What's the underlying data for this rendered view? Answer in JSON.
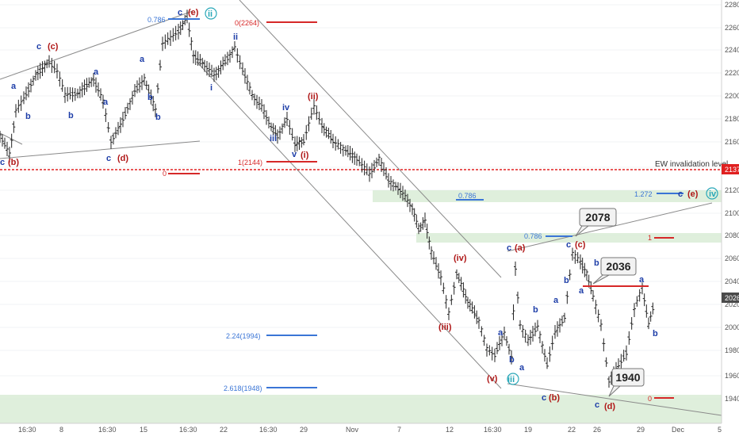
{
  "chart_data": {
    "type": "ohlc",
    "y_axis": {
      "ticks": [
        1940,
        1960,
        1980,
        2000,
        2020,
        2040,
        2060,
        2080,
        2100,
        2120,
        2140,
        2160,
        2180,
        2200,
        2220,
        2240,
        2260,
        2280
      ],
      "current_price": "2026",
      "invalidation_price": "2137"
    },
    "x_axis": {
      "ticks": [
        "16:30",
        "8",
        "16:30",
        "15",
        "16:30",
        "22",
        "16:30",
        "29",
        "Nov",
        "7",
        "12",
        "16:30",
        "19",
        "22",
        "26",
        "29",
        "Dec",
        "5"
      ]
    },
    "annotations": {
      "invalidation_label": "EW invalidation level",
      "callouts": [
        "2078",
        "2036",
        "1940"
      ],
      "fib_levels": [
        {
          "label": "0.786",
          "price": 2258
        },
        {
          "label": "0(2264)",
          "price": 2264
        },
        {
          "label": "1(2144)",
          "price": 2144
        },
        {
          "label": "0",
          "price": 2135
        },
        {
          "label": "0.786",
          "price": 2111
        },
        {
          "label": "1.272",
          "price": 2115
        },
        {
          "label": "0.786",
          "price": 2080
        },
        {
          "label": "1",
          "price": 2077
        },
        {
          "label": "2.24(1994)",
          "price": 1994
        },
        {
          "label": "2.618(1948)",
          "price": 1948
        },
        {
          "label": "0",
          "price": 1940
        }
      ],
      "wave_labels": [
        "a",
        "b",
        "c",
        "(c)",
        "a",
        "b",
        "c",
        "(b)",
        "a",
        "b",
        "c",
        "(d)",
        "a",
        "b",
        "c",
        "(e)",
        "ii",
        "i",
        "ii",
        "iii",
        "iv",
        "v",
        "(i)",
        "(ii)",
        "(iii)",
        "(iv)",
        "(v)",
        "iii",
        "a",
        "b",
        "c",
        "(a)",
        "a",
        "b",
        "c",
        "(b)",
        "a",
        "b",
        "c",
        "(c)",
        "a",
        "b",
        "c",
        "(d)",
        "a",
        "b",
        "c",
        "(e)",
        "iv"
      ]
    },
    "zones": [
      {
        "from": 2107,
        "to": 2120
      },
      {
        "from": 2074,
        "to": 2083
      },
      {
        "from": 1928,
        "to": 1943
      }
    ]
  }
}
